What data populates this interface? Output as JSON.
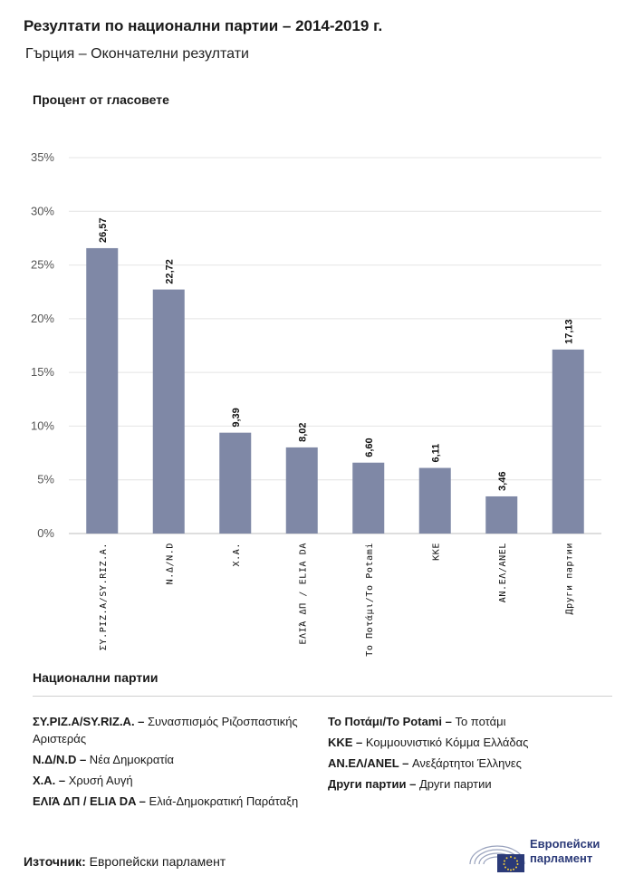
{
  "header": {
    "title": "Резултати по национални партии – 2014-2019 г.",
    "subtitle": "Гърция – Окончателни резултати"
  },
  "chart_data": {
    "type": "bar",
    "ylabel": "Процент от гласовете",
    "ylim": [
      0,
      35
    ],
    "yticks": [
      "0%",
      "5%",
      "10%",
      "15%",
      "20%",
      "25%",
      "30%",
      "35%"
    ],
    "grid": true,
    "bar_color": "#7f88a6",
    "categories": [
      "ΣΥ.ΡΙΖ.Α/SY.RIZ.A.",
      "Ν.Δ/N.D",
      "Χ.Α.",
      "ΕΛΙΆ ΔΠ / ELIA DA",
      "Το Ποτάμι/To Potami",
      "KKE",
      "ΑΝ.ΕΛ/ANEL",
      "Други партии"
    ],
    "values": [
      26.57,
      22.72,
      9.39,
      8.02,
      6.6,
      6.11,
      3.46,
      17.13
    ],
    "value_labels": [
      "26,57",
      "22,72",
      "9,39",
      "8,02",
      "6,60",
      "6,11",
      "3,46",
      "17,13"
    ]
  },
  "legend": {
    "title": "Национални партии",
    "left": [
      {
        "abbr": "ΣΥ.ΡΙΖ.Α/SY.RIZ.A. –",
        "name": "Συνασπισμός Ριζοσπαστικής Αριστεράς"
      },
      {
        "abbr": "Ν.Δ/N.D –",
        "name": "Νέα Δημοκρατία"
      },
      {
        "abbr": "Χ.Α. –",
        "name": "Χρυσή Αυγή"
      },
      {
        "abbr": "ΕΛΙΆ ΔΠ / ELIA DA –",
        "name": "Ελιά-Δημοκρατική Παράταξη"
      }
    ],
    "right": [
      {
        "abbr": "Το Ποτάμι/To Potami –",
        "name": "Το ποτάμι"
      },
      {
        "abbr": "KKE –",
        "name": "Κομμουνιστικό Κόμμα Ελλάδας"
      },
      {
        "abbr": "ΑΝ.ΕΛ/ANEL –",
        "name": "Ανεξάρτητοι Έλληνες"
      },
      {
        "abbr": "Други партии –",
        "name": "Други партии"
      }
    ]
  },
  "footer": {
    "source_label": "Източник:",
    "source_value": "Европейски парламент",
    "logo_line1": "Европейски",
    "logo_line2": "парламент",
    "logo_color": "#2b3a78"
  }
}
